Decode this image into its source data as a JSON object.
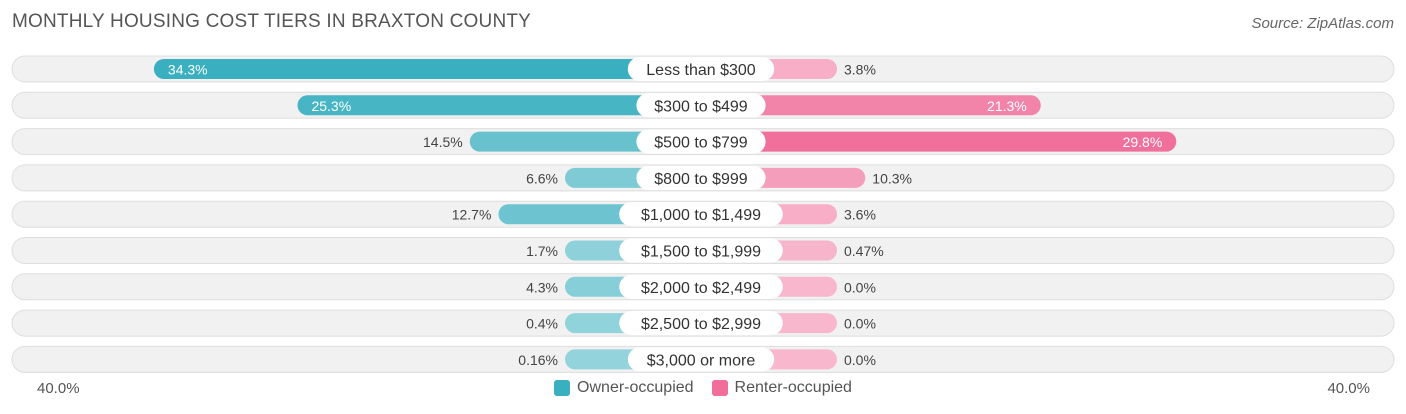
{
  "title": "MONTHLY HOUSING COST TIERS IN BRAXTON COUNTY",
  "source": "Source: ZipAtlas.com",
  "axis": {
    "left_label": "40.0%",
    "right_label": "40.0%"
  },
  "legend": [
    {
      "name": "Owner-occupied",
      "color": "#3aafbf"
    },
    {
      "name": "Renter-occupied",
      "color": "#f06e99"
    }
  ],
  "chart_data": {
    "type": "bar",
    "orientation": "diverging-horizontal",
    "max": 40.0,
    "categories": [
      "Less than $300",
      "$300 to $499",
      "$500 to $799",
      "$800 to $999",
      "$1,000 to $1,499",
      "$1,500 to $1,999",
      "$2,000 to $2,499",
      "$2,500 to $2,999",
      "$3,000 or more"
    ],
    "series": [
      {
        "name": "Owner-occupied",
        "values": [
          34.3,
          25.3,
          14.5,
          6.6,
          12.7,
          1.7,
          4.3,
          0.4,
          0.16
        ],
        "labels": [
          "34.3%",
          "25.3%",
          "14.5%",
          "6.6%",
          "12.7%",
          "1.7%",
          "4.3%",
          "0.4%",
          "0.16%"
        ]
      },
      {
        "name": "Renter-occupied",
        "values": [
          3.8,
          21.3,
          29.8,
          10.3,
          3.6,
          0.47,
          0.0,
          0.0,
          0.0
        ],
        "labels": [
          "3.8%",
          "21.3%",
          "29.8%",
          "10.3%",
          "3.6%",
          "0.47%",
          "0.0%",
          "0.0%",
          "0.0%"
        ]
      }
    ]
  }
}
